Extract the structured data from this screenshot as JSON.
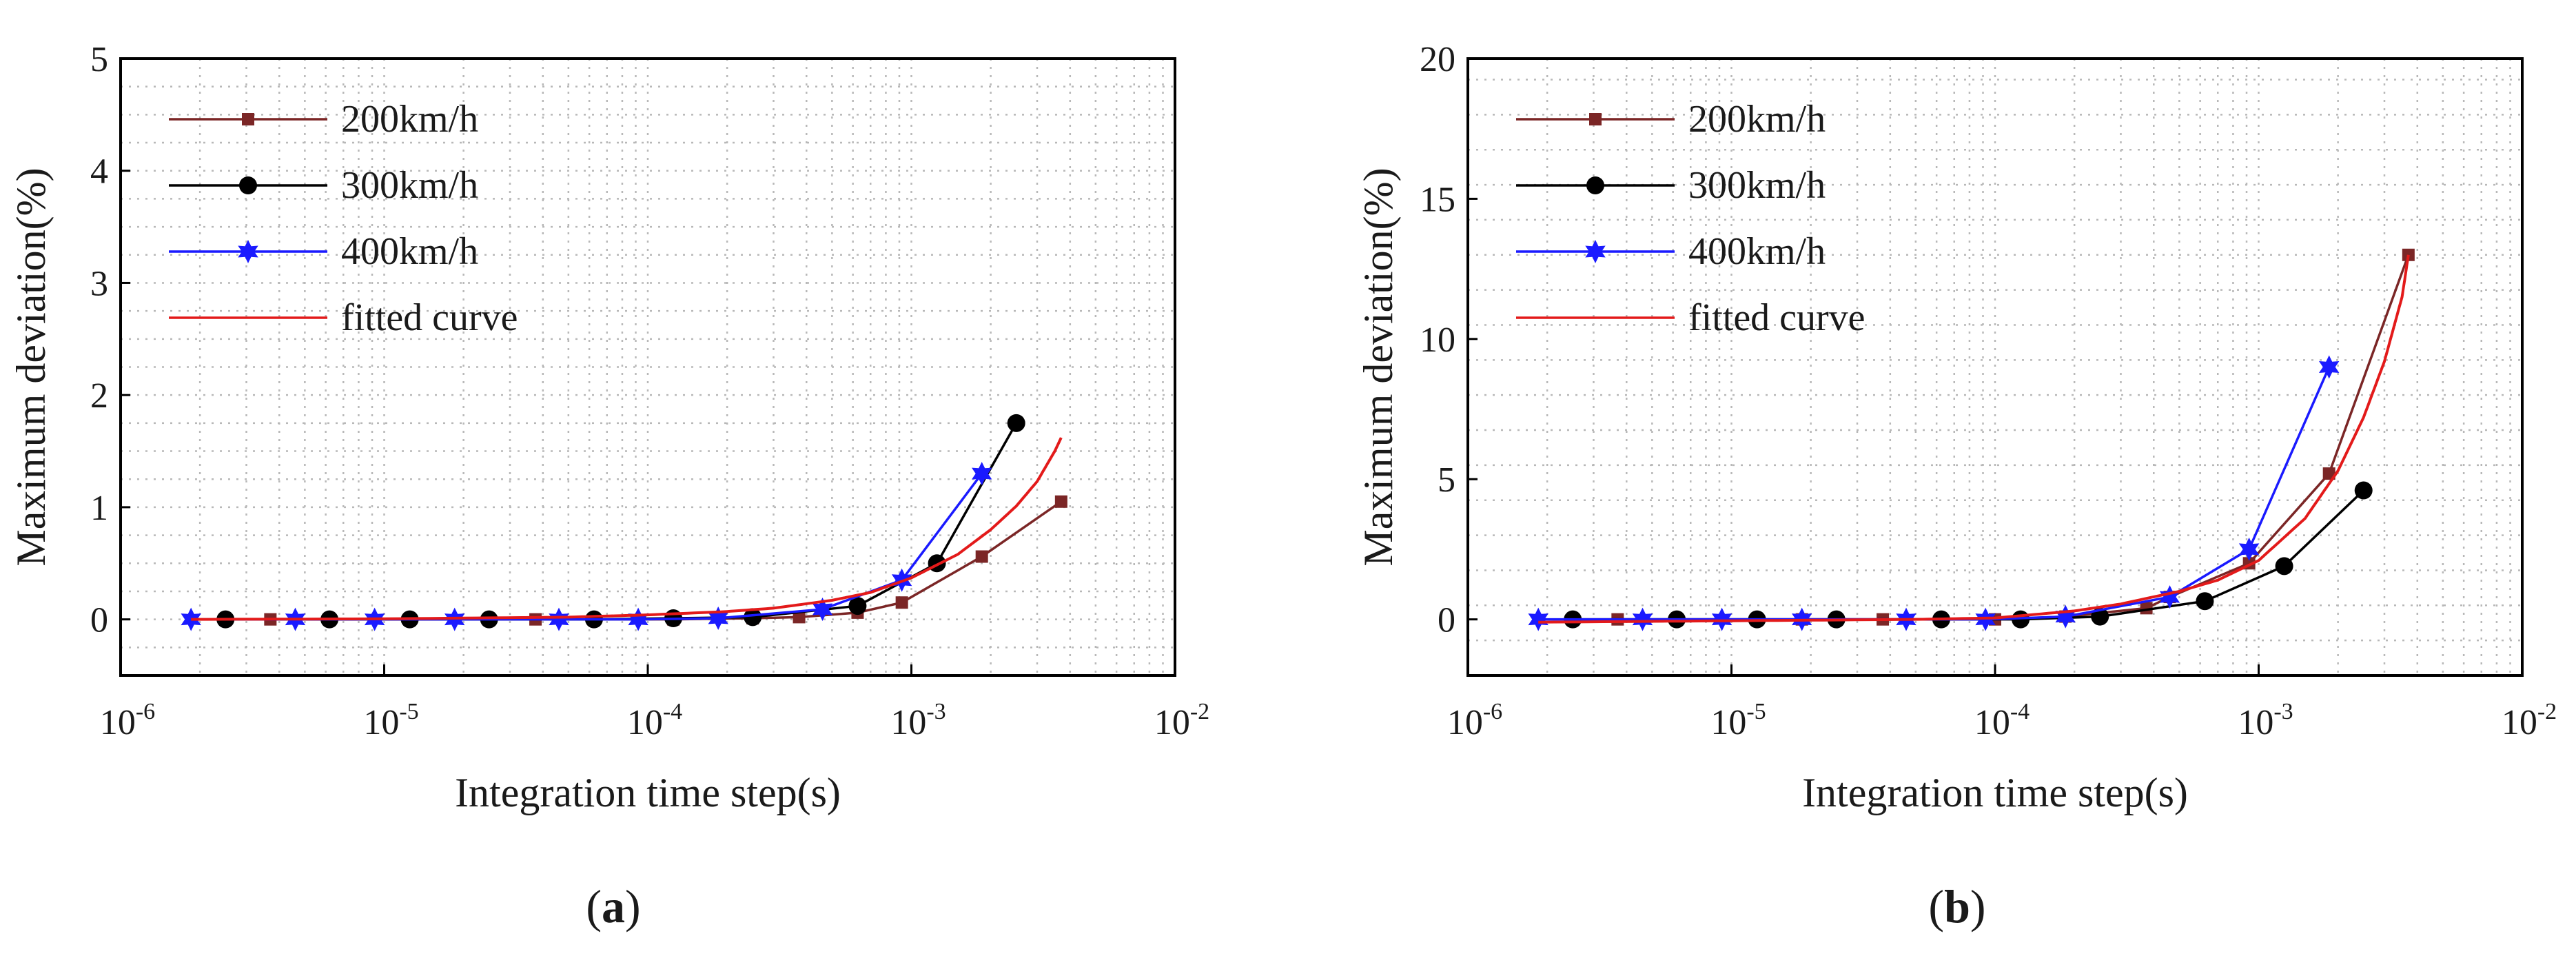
{
  "figure": {
    "panels": [
      {
        "label": "a"
      },
      {
        "label": "b"
      }
    ]
  },
  "chart_data": [
    {
      "type": "line",
      "panel_label": "(a)",
      "xscale": "log",
      "xlim": [
        1e-06,
        0.01
      ],
      "ylim": [
        -0.5,
        5
      ],
      "xticks": [
        {
          "base": "10",
          "exp": "-6"
        },
        {
          "base": "10",
          "exp": "-5"
        },
        {
          "base": "10",
          "exp": "-4"
        },
        {
          "base": "10",
          "exp": "-3"
        },
        {
          "base": "10",
          "exp": "-2"
        }
      ],
      "yticks": [
        "0",
        "1",
        "2",
        "3",
        "4",
        "5"
      ],
      "ytick_values": [
        0,
        1,
        2,
        3,
        4,
        5
      ],
      "xlabel": "Integration time step(s)",
      "ylabel": "Maximum deviation(%)",
      "grid": true,
      "legend_position": "top-left",
      "series": [
        {
          "name": "200km/h",
          "color": "#7b2626",
          "marker": "square",
          "x": [
            2.5e-06,
            3.7e-06,
            6.2e-06,
            1.25e-05,
            2.5e-05,
            3.75e-05,
            6.25e-05,
            0.000125,
            0.00025,
            0.000375,
            0.000625,
            0.00092,
            0.00185,
            0.0037
          ],
          "y": [
            0,
            0,
            0,
            0,
            0,
            0,
            0,
            0,
            0.01,
            0.02,
            0.06,
            0.15,
            0.56,
            1.05
          ]
        },
        {
          "name": "300km/h",
          "color": "#000000",
          "marker": "circle",
          "x": [
            2.5e-06,
            6.2e-06,
            1.25e-05,
            2.5e-05,
            6.25e-05,
            0.000125,
            0.00025,
            0.000625,
            0.00125,
            0.0025
          ],
          "y": [
            0,
            0,
            0,
            0,
            0,
            0.01,
            0.02,
            0.12,
            0.5,
            1.75
          ]
        },
        {
          "name": "400km/h",
          "color": "#1a1aff",
          "marker": "star",
          "x": [
            1.85e-06,
            4.6e-06,
            9.2e-06,
            1.85e-05,
            4.6e-05,
            9.2e-05,
            0.000185,
            0.00046,
            0.00092,
            0.00185
          ],
          "y": [
            0,
            0,
            0,
            0,
            0,
            0,
            0.01,
            0.09,
            0.35,
            1.3
          ]
        },
        {
          "name": "fitted curve",
          "color": "#e31a1a",
          "marker": "none",
          "x": [
            1.85e-06,
            1e-05,
            5e-05,
            0.0001,
            0.0002,
            0.0003,
            0.0005,
            0.0007,
            0.001,
            0.0015,
            0.002,
            0.0025,
            0.003,
            0.0035,
            0.0037
          ],
          "y": [
            0,
            0.005,
            0.02,
            0.04,
            0.07,
            0.1,
            0.17,
            0.24,
            0.37,
            0.58,
            0.8,
            1.01,
            1.23,
            1.5,
            1.62
          ]
        }
      ]
    },
    {
      "type": "line",
      "panel_label": "(b)",
      "xscale": "log",
      "xlim": [
        1e-06,
        0.01
      ],
      "ylim": [
        -2,
        20
      ],
      "xticks": [
        {
          "base": "10",
          "exp": "-6"
        },
        {
          "base": "10",
          "exp": "-5"
        },
        {
          "base": "10",
          "exp": "-4"
        },
        {
          "base": "10",
          "exp": "-3"
        },
        {
          "base": "10",
          "exp": "-2"
        }
      ],
      "yticks": [
        "0",
        "5",
        "10",
        "15",
        "20"
      ],
      "ytick_values": [
        0,
        5,
        10,
        15,
        20
      ],
      "xlabel": "Integration time step(s)",
      "ylabel": "Maximum deviation(%)",
      "grid": true,
      "legend_position": "top-left",
      "series": [
        {
          "name": "200km/h",
          "color": "#7b2626",
          "marker": "square",
          "x": [
            3.7e-06,
            6.2e-06,
            1.85e-05,
            3.75e-05,
            6.25e-05,
            0.0001,
            0.000185,
            0.000375,
            0.00046,
            0.00092,
            0.00185,
            0.0037
          ],
          "y": [
            0,
            0,
            0,
            0,
            0,
            0,
            0.1,
            0.4,
            0.8,
            2.0,
            5.2,
            13.0
          ]
        },
        {
          "name": "300km/h",
          "color": "#000000",
          "marker": "circle",
          "x": [
            2.5e-06,
            6.2e-06,
            1.25e-05,
            2.5e-05,
            6.25e-05,
            0.000125,
            0.00025,
            0.000625,
            0.00125,
            0.0025
          ],
          "y": [
            0,
            0,
            0,
            0,
            0,
            0,
            0.1,
            0.65,
            1.9,
            4.6
          ]
        },
        {
          "name": "400km/h",
          "color": "#1a1aff",
          "marker": "star",
          "x": [
            1.85e-06,
            4.6e-06,
            9.2e-06,
            1.85e-05,
            4.6e-05,
            9.2e-05,
            0.000185,
            0.00046,
            0.00092,
            0.00185
          ],
          "y": [
            0,
            0,
            0,
            0,
            0,
            0,
            0.1,
            0.8,
            2.5,
            9.0
          ]
        },
        {
          "name": "fitted curve",
          "color": "#e31a1a",
          "marker": "none",
          "x": [
            1.85e-06,
            1e-05,
            5e-05,
            0.0001,
            0.0002,
            0.0003,
            0.0005,
            0.0007,
            0.001,
            0.0015,
            0.002,
            0.0025,
            0.003,
            0.0035,
            0.0037
          ],
          "y": [
            -0.1,
            -0.05,
            0.0,
            0.05,
            0.3,
            0.55,
            1.0,
            1.4,
            2.1,
            3.6,
            5.3,
            7.2,
            9.2,
            11.5,
            13.0
          ]
        }
      ]
    }
  ]
}
